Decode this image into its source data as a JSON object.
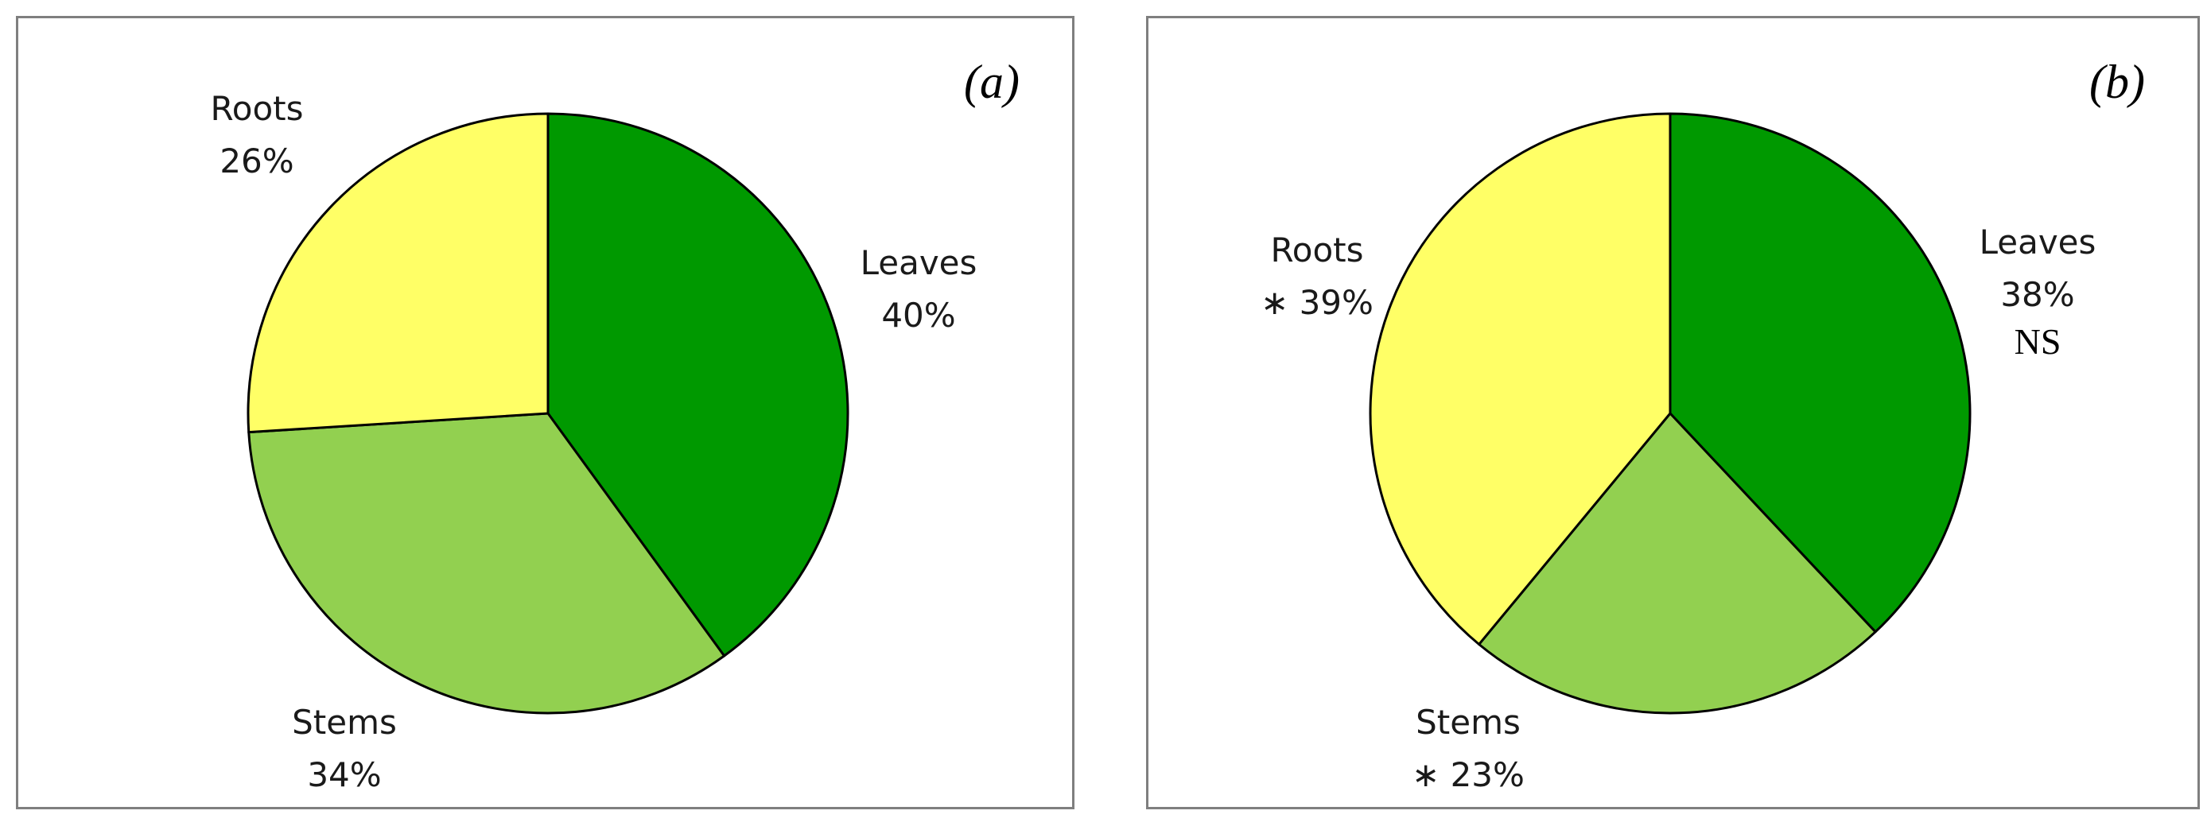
{
  "colors": {
    "Leaves": "#009900",
    "Stems": "#92d050",
    "Roots": "#ffff66",
    "outline": "#000000"
  },
  "chart_data": [
    {
      "type": "pie",
      "panel": "(a)",
      "categories": [
        "Leaves",
        "Stems",
        "Roots"
      ],
      "values": [
        40,
        34,
        26
      ],
      "labels": [
        {
          "category": "Leaves",
          "percent": "40%",
          "mark": "",
          "note": ""
        },
        {
          "category": "Stems",
          "percent": "34%",
          "mark": "",
          "note": ""
        },
        {
          "category": "Roots",
          "percent": "26%",
          "mark": "",
          "note": ""
        }
      ]
    },
    {
      "type": "pie",
      "panel": "(b)",
      "categories": [
        "Leaves",
        "Stems",
        "Roots"
      ],
      "values": [
        38,
        23,
        39
      ],
      "labels": [
        {
          "category": "Leaves",
          "percent": "38%",
          "mark": "",
          "note": "NS"
        },
        {
          "category": "Stems",
          "percent": "23%",
          "mark": "∗",
          "note": ""
        },
        {
          "category": "Roots",
          "percent": "39%",
          "mark": "∗",
          "note": ""
        }
      ]
    }
  ]
}
